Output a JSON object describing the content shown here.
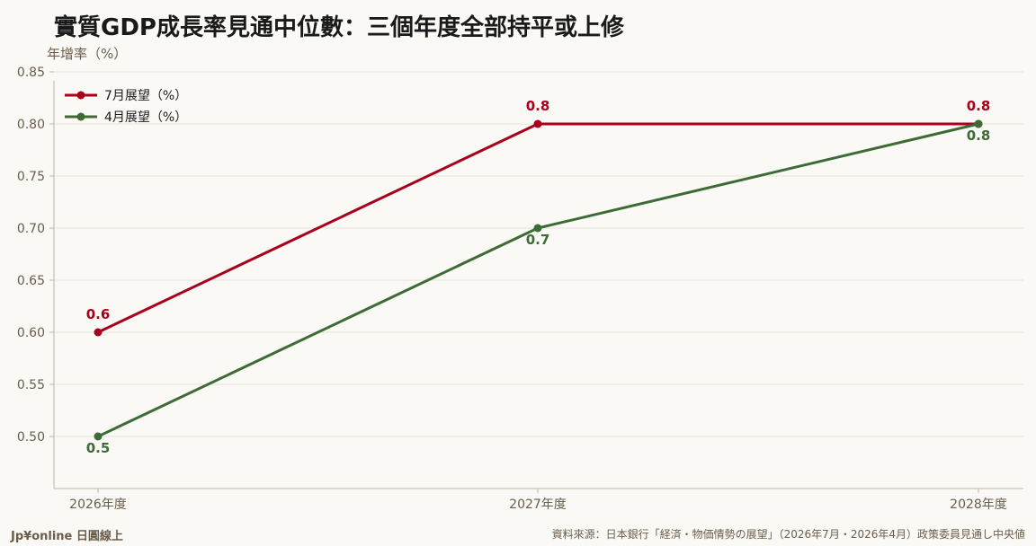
{
  "title": "實質GDP成長率見通中位數：三個年度全部持平或上修",
  "brand": "Jp¥online 日圓線上",
  "source": "資料來源：日本銀行「経済・物価情勢の展望」（2026年7月・2026年4月）政策委員見通し中央値",
  "chart_data": {
    "type": "line",
    "title": "實質GDP成長率見通中位數：三個年度全部持平或上修",
    "ylabel": "年增率（%）",
    "xlabel": "",
    "categories": [
      "2026年度",
      "2027年度",
      "2028年度"
    ],
    "ylim": [
      0.45,
      0.85
    ],
    "yticks": [
      "0.50",
      "0.55",
      "0.60",
      "0.65",
      "0.70",
      "0.75",
      "0.80",
      "0.85"
    ],
    "grid": true,
    "legend_position": "top-left",
    "series": [
      {
        "name": "7月展望（%）",
        "values": [
          0.6,
          0.8,
          0.8
        ],
        "labels": [
          "0.6",
          "0.8",
          "0.8"
        ],
        "color": "#a8001c",
        "label_position": "above"
      },
      {
        "name": "4月展望（%）",
        "values": [
          0.5,
          0.7,
          0.8
        ],
        "labels": [
          "0.5",
          "0.7",
          "0.8"
        ],
        "color": "#3d6b35",
        "label_position": "below"
      }
    ]
  }
}
